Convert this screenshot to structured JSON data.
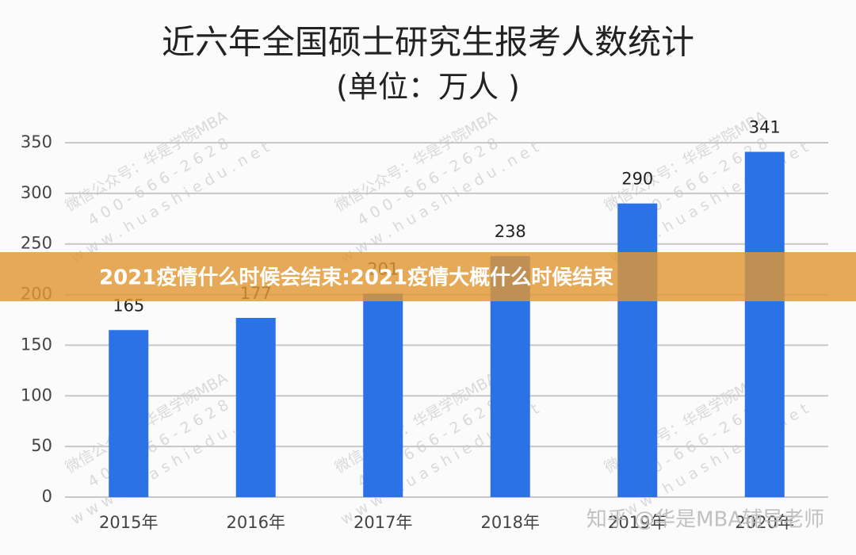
{
  "chart_data": {
    "type": "bar",
    "title": "近六年全国硕士研究生报考人数统计",
    "subtitle": "(单位：万人 )",
    "categories": [
      "2015年",
      "2016年",
      "2017年",
      "2018年",
      "2019年",
      "2020年"
    ],
    "values": [
      165,
      177,
      201,
      238,
      290,
      341
    ],
    "color": "#2b72e6",
    "ylim": [
      0,
      350
    ],
    "yticks": [
      0,
      50,
      100,
      150,
      200,
      250,
      300,
      350
    ],
    "grid": true
  },
  "watermark": [
    "微信公众号：华是学院MBA",
    "4 0 0 - 6 6 6 - 2 6 2 8",
    "w w w . h u a s h i e d u . n e t"
  ],
  "source": "知乎 @华是MBA辅导老师",
  "banner": "2021疫情什么时候会结束:2021疫情大概什么时候结束"
}
